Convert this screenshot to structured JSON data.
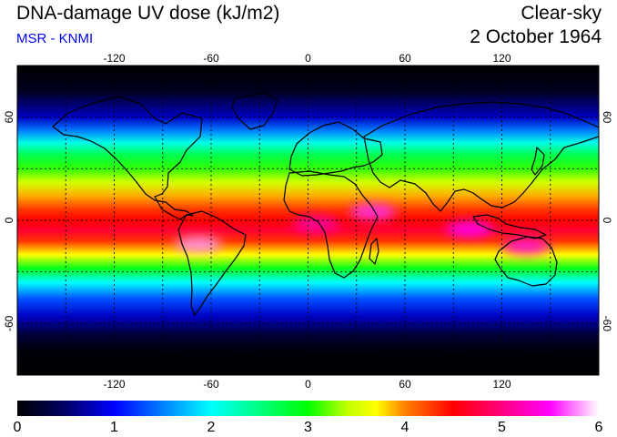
{
  "header": {
    "title": "DNA-damage UV dose (kJ/m2)",
    "subtitle": "MSR - KNMI",
    "sky_condition": "Clear-sky",
    "date": "2 October 1964"
  },
  "map": {
    "projection": "equirectangular",
    "lon_range": [
      -180,
      180
    ],
    "lat_range": [
      -90,
      90
    ],
    "graticule": "dashed",
    "graticule_lons": [
      -150,
      -120,
      -90,
      -60,
      -30,
      0,
      30,
      60,
      90,
      120,
      150
    ],
    "graticule_lats": [
      -60,
      -30,
      0,
      30,
      60
    ],
    "lon_tick_labels": [
      {
        "lon": -120,
        "label": "-120"
      },
      {
        "lon": -60,
        "label": "-60"
      },
      {
        "lon": 0,
        "label": "0"
      },
      {
        "lon": 60,
        "label": "60"
      },
      {
        "lon": 120,
        "label": "120"
      }
    ],
    "lat_tick_labels": [
      {
        "lat": 60,
        "label": "60"
      },
      {
        "lat": 0,
        "label": "0"
      },
      {
        "lat": -60,
        "label": "-60"
      }
    ],
    "background_color": "#000000",
    "coastline_color": "#000000",
    "zonal_dose_profile": [
      {
        "lat": 90,
        "dose": 0.0
      },
      {
        "lat": 75,
        "dose": 0.15
      },
      {
        "lat": 60,
        "dose": 0.8
      },
      {
        "lat": 52,
        "dose": 1.5
      },
      {
        "lat": 45,
        "dose": 2.1
      },
      {
        "lat": 38,
        "dose": 2.7
      },
      {
        "lat": 30,
        "dose": 3.1
      },
      {
        "lat": 22,
        "dose": 3.5
      },
      {
        "lat": 14,
        "dose": 3.9
      },
      {
        "lat": 6,
        "dose": 4.3
      },
      {
        "lat": 0,
        "dose": 4.5
      },
      {
        "lat": -6,
        "dose": 4.7
      },
      {
        "lat": -12,
        "dose": 4.3
      },
      {
        "lat": -20,
        "dose": 3.7
      },
      {
        "lat": -28,
        "dose": 2.9
      },
      {
        "lat": -36,
        "dose": 2.0
      },
      {
        "lat": -46,
        "dose": 1.3
      },
      {
        "lat": -56,
        "dose": 0.8
      },
      {
        "lat": -66,
        "dose": 0.3
      },
      {
        "lat": -76,
        "dose": 0.05
      },
      {
        "lat": -90,
        "dose": 0.0
      }
    ],
    "hotspots": [
      {
        "lon": -68,
        "lat": -14,
        "dose": 5.8
      },
      {
        "lon": 40,
        "lat": 5,
        "dose": 5.6
      },
      {
        "lon": 100,
        "lat": -5,
        "dose": 5.5
      },
      {
        "lon": 135,
        "lat": -15,
        "dose": 5.4
      },
      {
        "lon": 5,
        "lat": -2,
        "dose": 5.2
      }
    ]
  },
  "colorbar": {
    "min": 0,
    "max": 6,
    "tick_labels": [
      "0",
      "1",
      "2",
      "3",
      "4",
      "5",
      "6"
    ],
    "color_stops": [
      {
        "value": 0.0,
        "color": "#000000"
      },
      {
        "value": 0.5,
        "color": "#000066"
      },
      {
        "value": 1.0,
        "color": "#0000ff"
      },
      {
        "value": 1.5,
        "color": "#0080ff"
      },
      {
        "value": 2.0,
        "color": "#00ffff"
      },
      {
        "value": 2.5,
        "color": "#00ff80"
      },
      {
        "value": 3.0,
        "color": "#00ff00"
      },
      {
        "value": 3.4,
        "color": "#c0ff00"
      },
      {
        "value": 3.7,
        "color": "#ffff00"
      },
      {
        "value": 4.0,
        "color": "#ff8000"
      },
      {
        "value": 4.5,
        "color": "#ff0000"
      },
      {
        "value": 5.0,
        "color": "#ff0080"
      },
      {
        "value": 5.5,
        "color": "#ff00ff"
      },
      {
        "value": 6.0,
        "color": "#ffffff"
      }
    ]
  }
}
